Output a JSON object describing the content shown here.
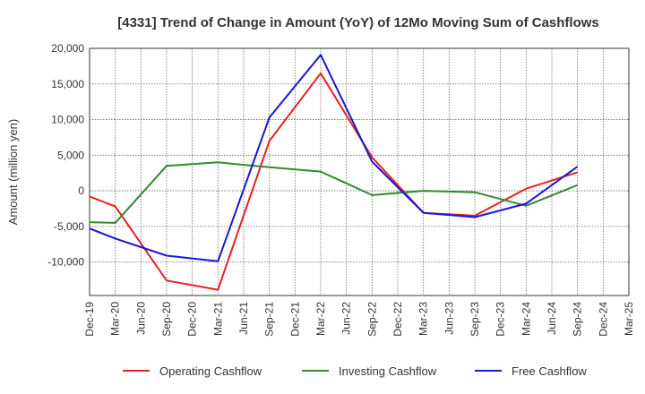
{
  "chart_data": {
    "type": "line",
    "title": "[4331]  Trend of Change in Amount (YoY) of 12Mo Moving Sum of Cashflows",
    "xlabel": "",
    "ylabel": "Amount (million yen)",
    "ylim": [
      -14700,
      20000
    ],
    "yticks": [
      20000,
      15000,
      10000,
      5000,
      0,
      -5000,
      -10000
    ],
    "ytick_labels": [
      "20,000",
      "15,000",
      "10,000",
      "5,000",
      "0",
      "-5,000",
      "-10,000"
    ],
    "categories": [
      "Dec-19",
      "Mar-20",
      "Jun-20",
      "Sep-20",
      "Dec-20",
      "Mar-21",
      "Jun-21",
      "Sep-21",
      "Dec-21",
      "Mar-22",
      "Jun-22",
      "Sep-22",
      "Dec-22",
      "Mar-23",
      "Jun-23",
      "Sep-23",
      "Dec-23",
      "Mar-24",
      "Jun-24",
      "Sep-24",
      "Dec-24",
      "Mar-25"
    ],
    "grid": true,
    "legend_position": "bottom",
    "series": [
      {
        "name": "Operating Cashflow",
        "color": "#e8201f",
        "values": [
          -800,
          -2200,
          null,
          -12600,
          null,
          -13900,
          null,
          7000,
          null,
          16500,
          null,
          4700,
          null,
          -3100,
          null,
          -3500,
          null,
          300,
          null,
          2600,
          null,
          null
        ]
      },
      {
        "name": "Investing Cashflow",
        "color": "#2e8b2e",
        "values": [
          -4400,
          -4500,
          null,
          3500,
          null,
          4000,
          null,
          3300,
          null,
          2700,
          null,
          -600,
          null,
          0,
          null,
          -200,
          null,
          -2100,
          null,
          800,
          null,
          null
        ]
      },
      {
        "name": "Free Cashflow",
        "color": "#1717d8",
        "values": [
          -5300,
          -6700,
          null,
          -9100,
          null,
          -9900,
          null,
          10300,
          null,
          19100,
          null,
          4100,
          null,
          -3100,
          null,
          -3700,
          null,
          -1800,
          null,
          3400,
          null,
          null
        ]
      }
    ]
  }
}
